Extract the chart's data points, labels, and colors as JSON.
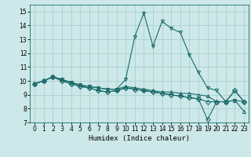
{
  "xlabel": "Humidex (Indice chaleur)",
  "xlim": [
    -0.5,
    23.5
  ],
  "ylim": [
    7,
    15.5
  ],
  "yticks": [
    7,
    8,
    9,
    10,
    11,
    12,
    13,
    14,
    15
  ],
  "xticks": [
    0,
    1,
    2,
    3,
    4,
    5,
    6,
    7,
    8,
    9,
    10,
    11,
    12,
    13,
    14,
    15,
    16,
    17,
    18,
    19,
    20,
    21,
    22,
    23
  ],
  "bg_color": "#cde8e8",
  "grid_color": "#aad0d0",
  "line_color": "#1a6b6b",
  "series": [
    [
      9.8,
      10.0,
      10.3,
      10.1,
      9.9,
      9.7,
      9.6,
      9.5,
      9.4,
      9.4,
      10.1,
      13.2,
      14.9,
      12.5,
      14.3,
      13.8,
      13.5,
      11.9,
      10.6,
      9.5,
      9.3,
      8.5,
      8.6,
      8.5
    ],
    [
      9.8,
      10.0,
      10.3,
      10.1,
      9.9,
      9.7,
      9.6,
      9.5,
      9.4,
      9.4,
      9.6,
      9.5,
      9.4,
      9.3,
      9.2,
      9.2,
      9.1,
      9.1,
      9.0,
      8.9,
      8.5,
      8.5,
      8.6,
      7.8
    ],
    [
      9.8,
      10.0,
      10.3,
      10.0,
      9.8,
      9.6,
      9.5,
      9.3,
      9.2,
      9.3,
      9.5,
      9.4,
      9.3,
      9.2,
      9.1,
      9.0,
      8.9,
      8.8,
      8.7,
      8.5,
      8.5,
      8.5,
      9.3,
      8.5
    ],
    [
      9.8,
      10.0,
      10.3,
      10.0,
      9.8,
      9.6,
      9.5,
      9.3,
      9.2,
      9.3,
      9.5,
      9.4,
      9.3,
      9.2,
      9.1,
      9.0,
      8.9,
      8.8,
      8.7,
      7.2,
      8.5,
      8.5,
      9.3,
      8.5
    ]
  ],
  "markers": [
    "v",
    "^",
    "D",
    "D"
  ],
  "tick_fontsize": 5.5,
  "xlabel_fontsize": 6.5
}
